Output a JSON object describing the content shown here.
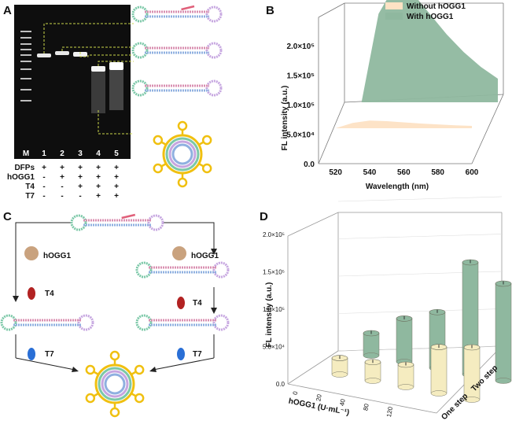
{
  "panels": {
    "A": {
      "letter": "A",
      "lane_labels": [
        "M",
        "1",
        "2",
        "3",
        "4",
        "5"
      ],
      "rows": [
        {
          "name": "DFPs",
          "signs": [
            "+",
            "+",
            "+",
            "+",
            "+"
          ]
        },
        {
          "name": "hOGG1",
          "signs": [
            "-",
            "+",
            "+",
            "+",
            "+"
          ]
        },
        {
          "name": "T4",
          "signs": [
            "-",
            "-",
            "+",
            "+",
            "+"
          ]
        },
        {
          "name": "T7",
          "signs": [
            "-",
            "-",
            "-",
            "+",
            "+"
          ]
        }
      ]
    },
    "B": {
      "letter": "B",
      "legend": [
        "Without hOGG1",
        "With hOGG1"
      ],
      "colors": {
        "without": "#fde2c4",
        "with": "#8fb89f"
      }
    },
    "C": {
      "letter": "C",
      "labels": {
        "hogg1_left": "hOGG1",
        "hogg1_right": "hOGG1",
        "t4_left": "T4",
        "t4_right": "T4",
        "t7_left": "T7",
        "t7_right": "T7"
      }
    },
    "D": {
      "letter": "D",
      "colors": {
        "one_step": "#f5ecc0",
        "two_step": "#8fb89f"
      }
    }
  },
  "chart_data": [
    {
      "type": "area",
      "panel": "B",
      "xlabel": "Wavelength (nm)",
      "ylabel": "FL intensity (a.u.)",
      "xlim": [
        510,
        600
      ],
      "ylim": [
        0,
        200000
      ],
      "x_ticks": [
        "520",
        "540",
        "560",
        "580",
        "600"
      ],
      "y_ticks": [
        "0.0",
        "5.0×10⁴",
        "1.0×10⁵",
        "1.5×10⁵",
        "2.0×10⁵"
      ],
      "legend": "top-right",
      "series": [
        {
          "name": "Without hOGG1",
          "x": [
            520,
            530,
            540,
            550,
            560,
            570,
            580,
            590,
            600
          ],
          "values": [
            0,
            9000,
            13000,
            12000,
            10000,
            8000,
            6500,
            5000,
            4000
          ]
        },
        {
          "name": "With hOGG1",
          "x": [
            520,
            530,
            540,
            550,
            560,
            570,
            580,
            590,
            600
          ],
          "values": [
            0,
            150000,
            200000,
            185000,
            150000,
            115000,
            85000,
            60000,
            40000
          ]
        }
      ]
    },
    {
      "type": "bar",
      "panel": "D",
      "xlabel": "hOGG1 (U·mL⁻¹)",
      "ylabel": "FL intensity (a.u.)",
      "categories": [
        "0",
        "20",
        "40",
        "80",
        "120"
      ],
      "y_ticks": [
        "0.0",
        "5.0×10⁴",
        "1.0×10⁵",
        "1.5×10⁵",
        "2.0×10⁵"
      ],
      "ylim": [
        0,
        200000
      ],
      "series": [
        {
          "name": "One step",
          "values": [
            22000,
            25000,
            30000,
            62000,
            70000
          ]
        },
        {
          "name": "Two step",
          "values": [
            30000,
            58000,
            75000,
            150000,
            130000
          ]
        }
      ]
    }
  ]
}
